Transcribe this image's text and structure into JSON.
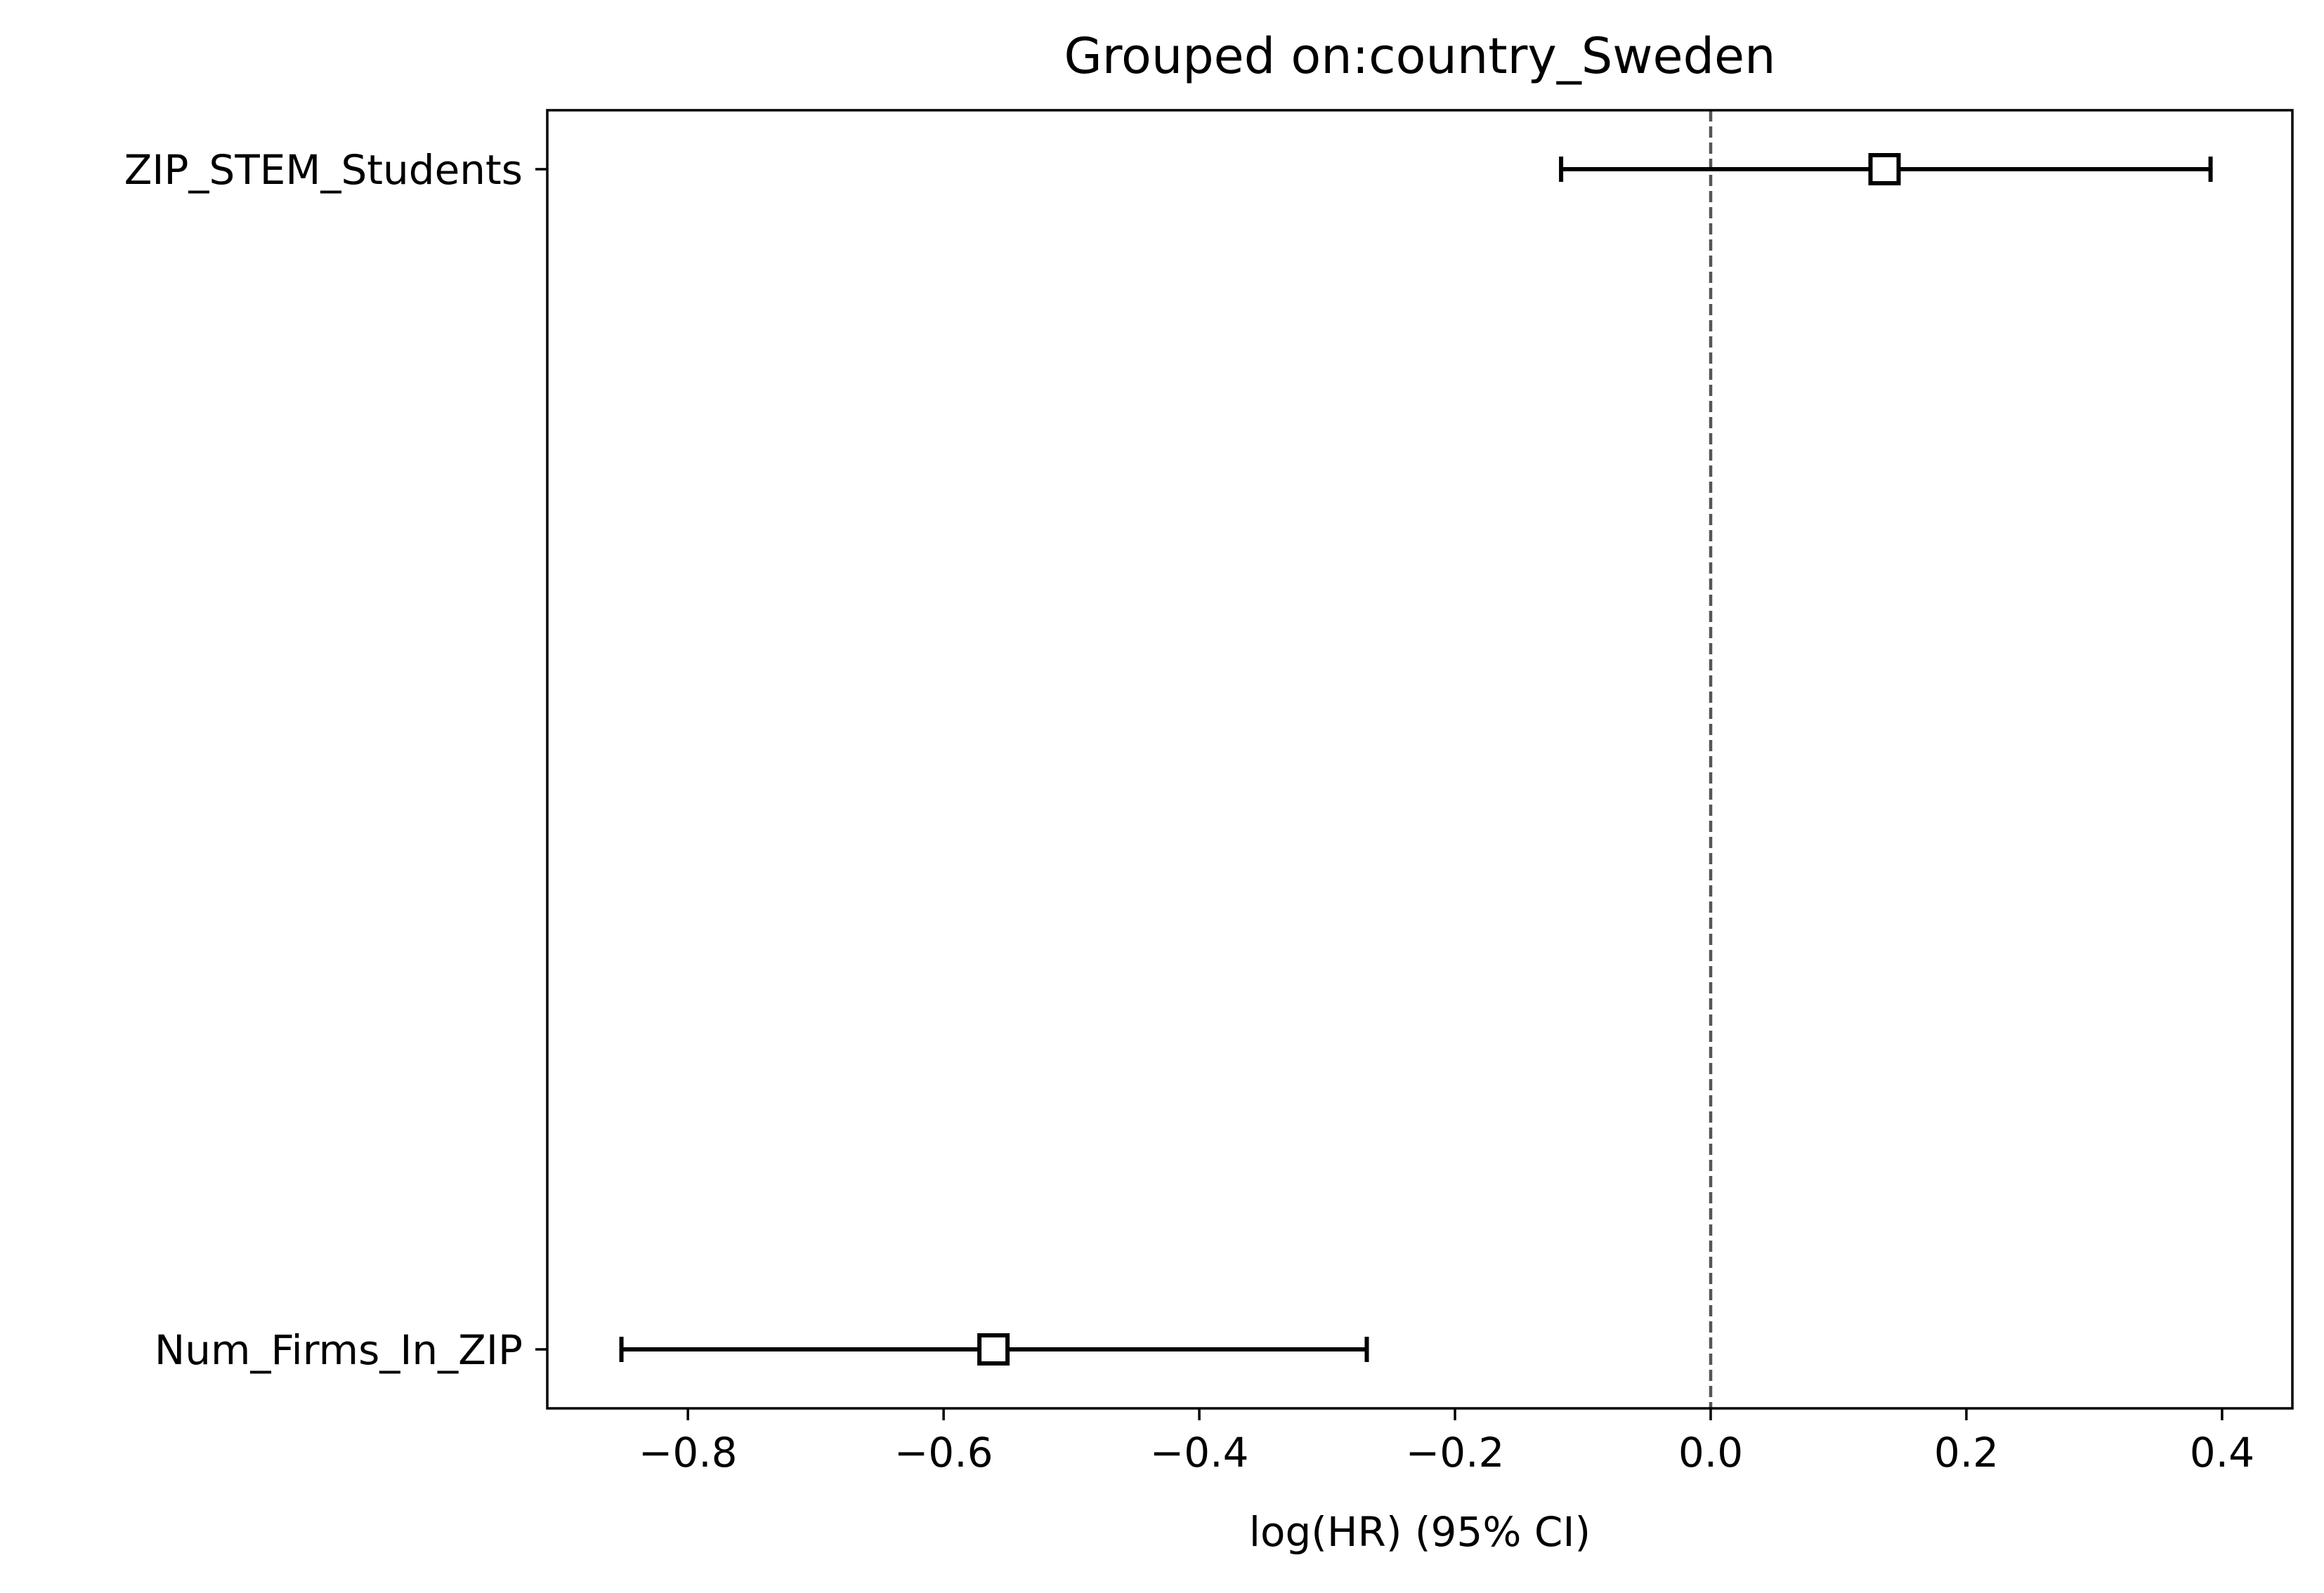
{
  "chart_data": {
    "type": "scatter",
    "subtype": "forest-plot",
    "title": "Grouped on:country_Sweden",
    "xlabel": "log(HR) (95% CI)",
    "ylabel": "",
    "xlim": [
      -0.91,
      0.455
    ],
    "xticks": [
      -0.8,
      -0.6,
      -0.4,
      -0.2,
      0.0,
      0.2,
      0.4
    ],
    "xtick_labels": [
      "−0.8",
      "−0.6",
      "−0.4",
      "−0.2",
      "0.0",
      "0.2",
      "0.4"
    ],
    "reference_line": 0.0,
    "grid": false,
    "legend": "none",
    "colors": {
      "marks": "#000000",
      "reference_line": "#555555",
      "marker_fill": "#ffffff"
    },
    "points": [
      {
        "label": "ZIP_STEM_Students",
        "coef": 0.136,
        "lower": -0.117,
        "upper": 0.391
      },
      {
        "label": "Num_Firms_In_ZIP",
        "coef": -0.561,
        "lower": -0.852,
        "upper": -0.269
      }
    ]
  }
}
